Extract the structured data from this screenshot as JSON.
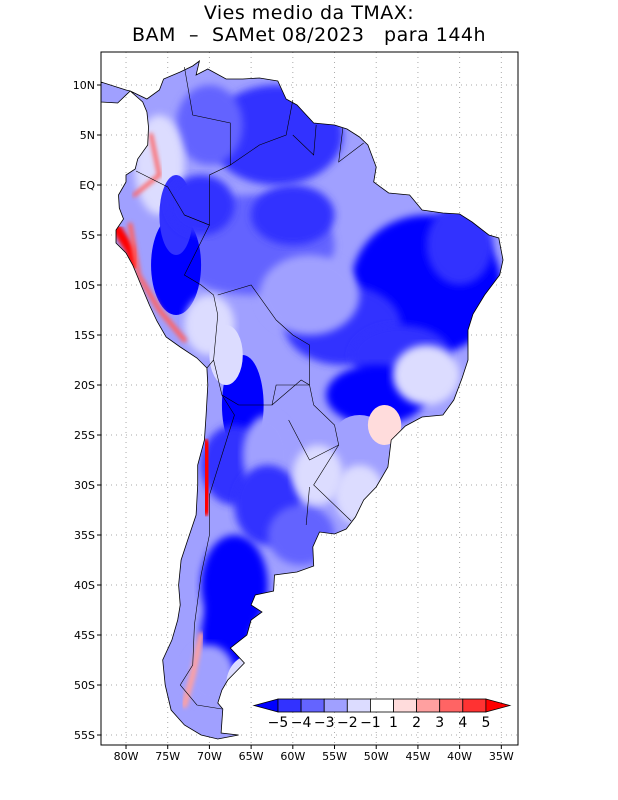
{
  "title": {
    "line1": "Vies medio da TMAX:",
    "line2": "BAM  –  SAMet 08/2023   para 144h"
  },
  "map": {
    "lon_range": [
      -83,
      -33
    ],
    "lat_range": [
      -56,
      13.3
    ],
    "lon_ticks": [
      {
        "v": -80,
        "label": "80W"
      },
      {
        "v": -75,
        "label": "75W"
      },
      {
        "v": -70,
        "label": "70W"
      },
      {
        "v": -65,
        "label": "65W"
      },
      {
        "v": -60,
        "label": "60W"
      },
      {
        "v": -55,
        "label": "55W"
      },
      {
        "v": -50,
        "label": "50W"
      },
      {
        "v": -45,
        "label": "45W"
      },
      {
        "v": -40,
        "label": "40W"
      },
      {
        "v": -35,
        "label": "35W"
      }
    ],
    "lat_ticks": [
      {
        "v": 10,
        "label": "10N"
      },
      {
        "v": 5,
        "label": "5N"
      },
      {
        "v": 0,
        "label": "EQ"
      },
      {
        "v": -5,
        "label": "5S"
      },
      {
        "v": -10,
        "label": "10S"
      },
      {
        "v": -15,
        "label": "15S"
      },
      {
        "v": -20,
        "label": "20S"
      },
      {
        "v": -25,
        "label": "25S"
      },
      {
        "v": -30,
        "label": "30S"
      },
      {
        "v": -35,
        "label": "35S"
      },
      {
        "v": -40,
        "label": "40S"
      },
      {
        "v": -45,
        "label": "45S"
      },
      {
        "v": -50,
        "label": "50S"
      },
      {
        "v": -55,
        "label": "55S"
      }
    ]
  },
  "colorbar": {
    "labels": [
      "-5",
      "-4",
      "-3",
      "-2",
      "-1",
      "1",
      "2",
      "3",
      "4",
      "5"
    ],
    "colors": [
      "#0000ff",
      "#3232ff",
      "#6464ff",
      "#a0a0ff",
      "#dcdcff",
      "#ffffff",
      "#ffdcdc",
      "#ffa0a0",
      "#ff6464",
      "#ff3232",
      "#ff0000"
    ]
  }
}
